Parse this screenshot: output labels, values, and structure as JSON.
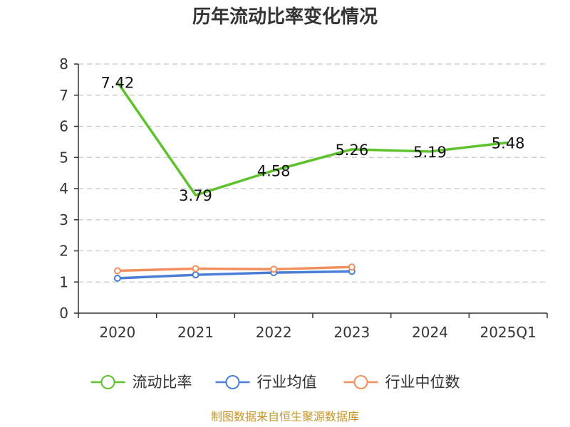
{
  "chart_data": {
    "type": "line",
    "title": "历年流动比率变化情况",
    "categories": [
      "2020",
      "2021",
      "2022",
      "2023",
      "2024",
      "2025Q1"
    ],
    "ylim": [
      0,
      8
    ],
    "yticks": [
      0,
      1,
      2,
      3,
      4,
      5,
      6,
      7,
      8
    ],
    "grid": true,
    "legend_position": "bottom",
    "series": [
      {
        "name": "流动比率",
        "color": "#5ec22d",
        "values": [
          7.42,
          3.79,
          4.58,
          5.26,
          5.19,
          5.48
        ],
        "labels": [
          "7.42",
          "3.79",
          "4.58",
          "5.26",
          "5.19",
          "5.48"
        ],
        "show_markers": false
      },
      {
        "name": "行业均值",
        "color": "#4a7ed6",
        "values": [
          1.12,
          1.23,
          1.3,
          1.34,
          null,
          null
        ],
        "show_markers": true
      },
      {
        "name": "行业中位数",
        "color": "#f28f5c",
        "values": [
          1.36,
          1.43,
          1.41,
          1.48,
          null,
          null
        ],
        "show_markers": true
      }
    ],
    "source": "制图数据来自恒生聚源数据库"
  }
}
